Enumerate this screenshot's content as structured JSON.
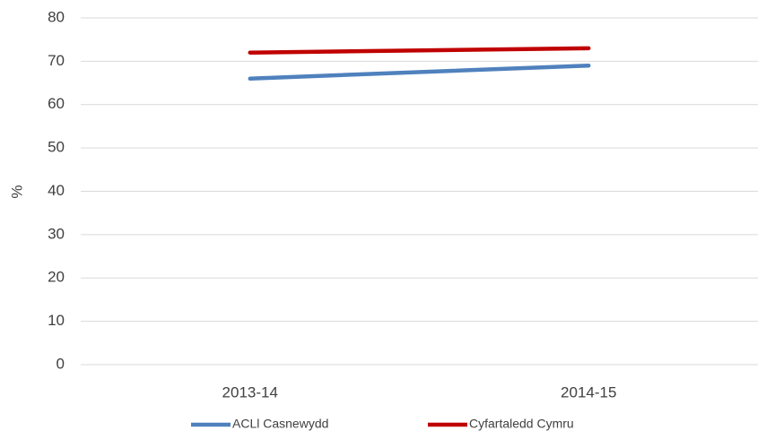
{
  "chart_data": {
    "type": "line",
    "y_label": "%",
    "categories": [
      "2013-14",
      "2014-15"
    ],
    "series": [
      {
        "name": "ACLl Casnewydd",
        "color": "#4f81bd",
        "values": [
          66,
          69
        ]
      },
      {
        "name": "Cyfartaledd Cymru",
        "color": "#c00000",
        "values": [
          72,
          73
        ]
      }
    ],
    "ylim": [
      0,
      80
    ],
    "yticks": [
      0,
      10,
      20,
      30,
      40,
      50,
      60,
      70,
      80
    ],
    "grid": true,
    "legend": "bottom"
  }
}
